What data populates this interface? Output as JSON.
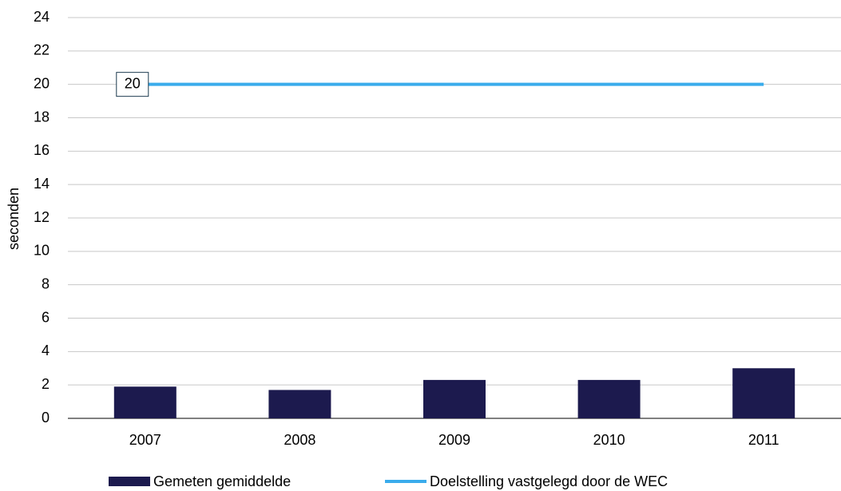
{
  "chart_data": {
    "type": "bar",
    "y_label": "seconden",
    "categories": [
      "2007",
      "2008",
      "2009",
      "2010",
      "2011"
    ],
    "series": [
      {
        "name": "Gemeten gemiddelde",
        "color": "#1c1a4e",
        "values": [
          1.9,
          1.7,
          2.3,
          2.3,
          3.0
        ]
      },
      {
        "name": "Doelstelling vastgelegd door de WEC",
        "color": "#3aacec",
        "type": "line",
        "values": [
          20,
          20,
          20,
          20,
          20
        ]
      }
    ],
    "ylim": [
      0,
      24
    ],
    "yticks": [
      0,
      2,
      4,
      6,
      8,
      10,
      12,
      14,
      16,
      18,
      20,
      22,
      24
    ],
    "grid": true,
    "legend": "bottom"
  }
}
